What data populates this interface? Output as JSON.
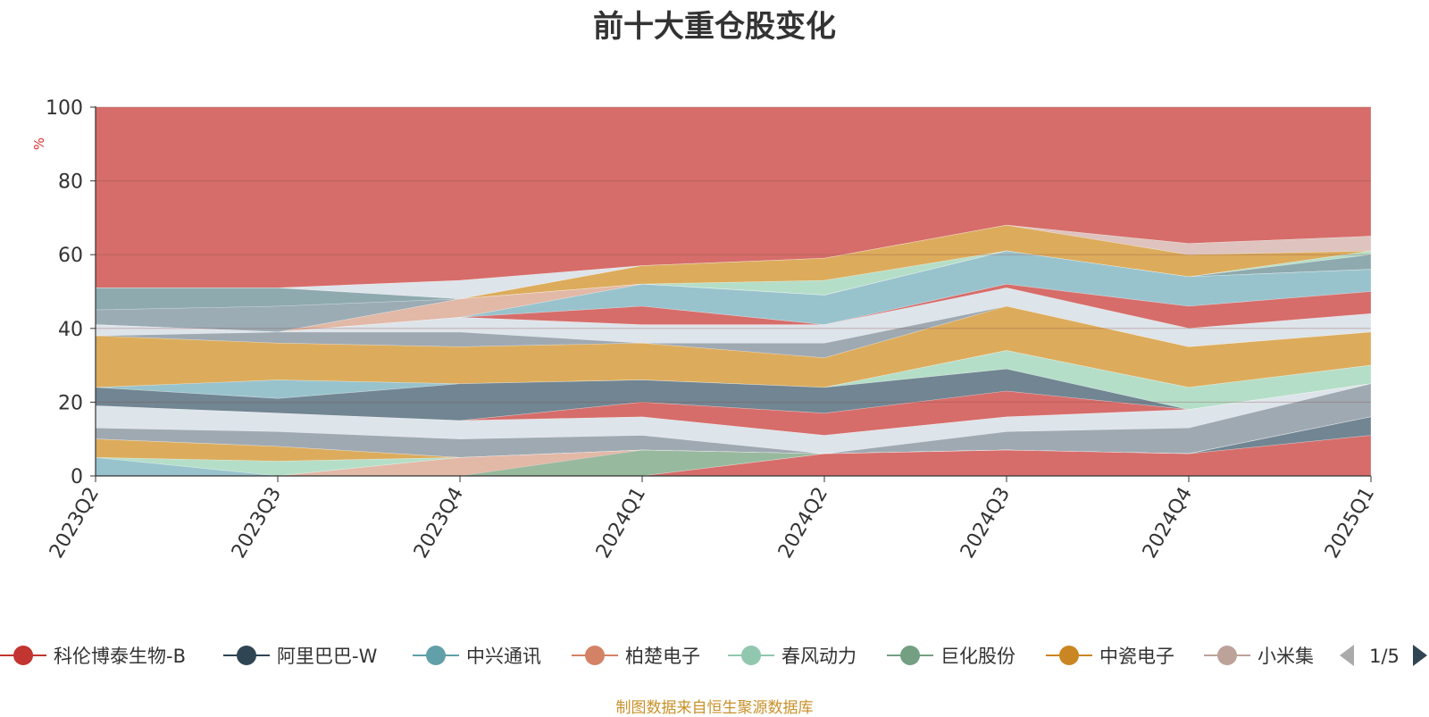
{
  "chart_data": {
    "type": "area",
    "title": "前十大重仓股变化",
    "ylabel": "%",
    "ylim": [
      0,
      100
    ],
    "yticks": [
      "0",
      "20",
      "40",
      "60",
      "80",
      "100"
    ],
    "categories": [
      "2023Q2",
      "2023Q3",
      "2023Q4",
      "2024Q1",
      "2024Q2",
      "2024Q3",
      "2024Q4",
      "2025Q1"
    ],
    "bands": [
      {
        "color": "#cf5450",
        "lower": [
          51,
          51,
          53,
          57,
          59,
          68,
          63,
          65
        ],
        "upper": [
          100,
          100,
          100,
          100,
          100,
          100,
          100,
          100
        ]
      },
      {
        "color": "#d7dfe6",
        "lower": [
          51,
          51,
          48,
          57,
          59,
          68,
          63,
          65
        ],
        "upper": [
          51,
          51,
          53,
          57,
          59,
          68,
          63,
          65
        ]
      },
      {
        "color": "#d8b9b3",
        "lower": [
          51,
          51,
          48,
          57,
          59,
          68,
          60,
          61
        ],
        "upper": [
          51,
          51,
          48,
          57,
          59,
          68,
          63,
          65
        ]
      },
      {
        "color": "#d69e40",
        "lower": [
          51,
          51,
          48,
          52,
          53,
          61,
          54,
          61
        ],
        "upper": [
          51,
          51,
          48,
          57,
          59,
          68,
          60,
          61
        ]
      },
      {
        "color": "#a8d8be",
        "lower": [
          51,
          51,
          48,
          52,
          49,
          61,
          54,
          60
        ],
        "upper": [
          51,
          51,
          48,
          52,
          53,
          61,
          54,
          61
        ]
      },
      {
        "color": "#7a9ba0",
        "lower": [
          45,
          46,
          48,
          52,
          49,
          61,
          54,
          56
        ],
        "upper": [
          51,
          51,
          48,
          52,
          49,
          61,
          54,
          60
        ]
      },
      {
        "color": "#8a9da8",
        "lower": [
          41,
          39,
          48,
          52,
          49,
          61,
          54,
          56
        ],
        "upper": [
          45,
          46,
          48,
          52,
          49,
          61,
          54,
          56
        ]
      },
      {
        "color": "#ddab98",
        "lower": [
          41,
          39,
          43,
          52,
          49,
          61,
          54,
          56
        ],
        "upper": [
          41,
          39,
          48,
          52,
          49,
          61,
          54,
          56
        ]
      },
      {
        "color": "#86b9c4",
        "lower": [
          41,
          39,
          43,
          46,
          41,
          52,
          46,
          50
        ],
        "upper": [
          41,
          39,
          43,
          52,
          49,
          61,
          54,
          56
        ]
      },
      {
        "color": "#cf5450",
        "lower": [
          41,
          39,
          43,
          41,
          41,
          51,
          40,
          44
        ],
        "upper": [
          41,
          39,
          43,
          46,
          41,
          52,
          46,
          50
        ]
      },
      {
        "color": "#d7dfe6",
        "lower": [
          38,
          39,
          39,
          36,
          36,
          46,
          35,
          39
        ],
        "upper": [
          41,
          39,
          43,
          41,
          41,
          51,
          40,
          44
        ]
      },
      {
        "color": "#8e9aa4",
        "lower": [
          38,
          36,
          35,
          36,
          32,
          46,
          35,
          39
        ],
        "upper": [
          38,
          39,
          39,
          36,
          36,
          46,
          35,
          39
        ]
      },
      {
        "color": "#d69e40",
        "lower": [
          24,
          26,
          25,
          26,
          24,
          34,
          24,
          30
        ],
        "upper": [
          38,
          36,
          35,
          36,
          32,
          46,
          35,
          39
        ]
      },
      {
        "color": "#86b9c4",
        "lower": [
          24,
          21,
          25,
          26,
          24,
          34,
          24,
          30
        ],
        "upper": [
          24,
          26,
          25,
          26,
          24,
          34,
          24,
          30
        ]
      },
      {
        "color": "#a8d8be",
        "lower": [
          24,
          21,
          25,
          26,
          24,
          29,
          18,
          25
        ],
        "upper": [
          24,
          21,
          25,
          26,
          24,
          34,
          24,
          30
        ]
      },
      {
        "color": "#58707f",
        "lower": [
          19,
          17,
          15,
          20,
          17,
          23,
          18,
          25
        ],
        "upper": [
          24,
          21,
          25,
          26,
          24,
          29,
          18,
          25
        ]
      },
      {
        "color": "#cf5450",
        "lower": [
          19,
          17,
          15,
          16,
          11,
          16,
          18,
          25
        ],
        "upper": [
          19,
          17,
          15,
          20,
          17,
          23,
          18,
          25
        ]
      },
      {
        "color": "#d7dfe6",
        "lower": [
          13,
          12,
          10,
          11,
          6,
          12,
          13,
          25
        ],
        "upper": [
          19,
          17,
          15,
          16,
          11,
          16,
          18,
          25
        ]
      },
      {
        "color": "#8e9aa4",
        "lower": [
          10,
          8,
          5,
          7,
          6,
          7,
          6,
          16
        ],
        "upper": [
          13,
          12,
          10,
          11,
          6,
          12,
          13,
          25
        ]
      },
      {
        "color": "#d8b9b3",
        "lower": [
          10,
          8,
          5,
          7,
          6,
          7,
          6,
          16
        ],
        "upper": [
          10,
          8,
          5,
          7,
          6,
          7,
          6,
          16
        ]
      },
      {
        "color": "#d69e40",
        "lower": [
          5,
          4,
          5,
          7,
          6,
          7,
          6,
          16
        ],
        "upper": [
          10,
          8,
          5,
          7,
          6,
          7,
          6,
          16
        ]
      },
      {
        "color": "#a8d8be",
        "lower": [
          5,
          0,
          5,
          7,
          6,
          7,
          6,
          16
        ],
        "upper": [
          5,
          4,
          5,
          7,
          6,
          7,
          6,
          16
        ]
      },
      {
        "color": "#86b9c4",
        "lower": [
          0,
          0,
          5,
          7,
          6,
          7,
          6,
          16
        ],
        "upper": [
          5,
          0,
          5,
          7,
          6,
          7,
          6,
          16
        ]
      },
      {
        "color": "#ddab98",
        "lower": [
          0,
          0,
          0,
          0,
          6,
          7,
          6,
          16
        ],
        "upper": [
          0,
          0,
          5,
          7,
          6,
          7,
          6,
          16
        ]
      },
      {
        "color": "#8ab89c",
        "lower": [
          0,
          0,
          0,
          0,
          6,
          7,
          6,
          16
        ],
        "upper": [
          0,
          0,
          0,
          7,
          6,
          7,
          6,
          16
        ]
      },
      {
        "color": "#58707f",
        "lower": [
          0,
          0,
          0,
          0,
          6,
          7,
          6,
          11
        ],
        "upper": [
          0,
          0,
          0,
          0,
          6,
          7,
          6,
          16
        ]
      },
      {
        "color": "#cf5450",
        "lower": [
          0,
          0,
          0,
          0,
          0,
          0,
          0,
          0
        ],
        "upper": [
          0,
          0,
          0,
          0,
          6,
          7,
          6,
          11
        ]
      }
    ],
    "legend": {
      "position": "bottom",
      "items": [
        {
          "name": "科伦博泰生物-B",
          "color": "#c23531"
        },
        {
          "name": "阿里巴巴-W",
          "color": "#2f4554"
        },
        {
          "name": "中兴通讯",
          "color": "#61a0a8"
        },
        {
          "name": "柏楚电子",
          "color": "#d48265"
        },
        {
          "name": "春风动力",
          "color": "#91c7ae"
        },
        {
          "name": "巨化股份",
          "color": "#749f83"
        },
        {
          "name": "中瓷电子",
          "color": "#ca8622"
        },
        {
          "name": "小米集",
          "color": "#bda29a"
        }
      ],
      "page": "1/5",
      "prev_color": "#aaaaaa",
      "next_color": "#2f4554"
    },
    "source_note": "制图数据来自恒生聚源数据库"
  }
}
